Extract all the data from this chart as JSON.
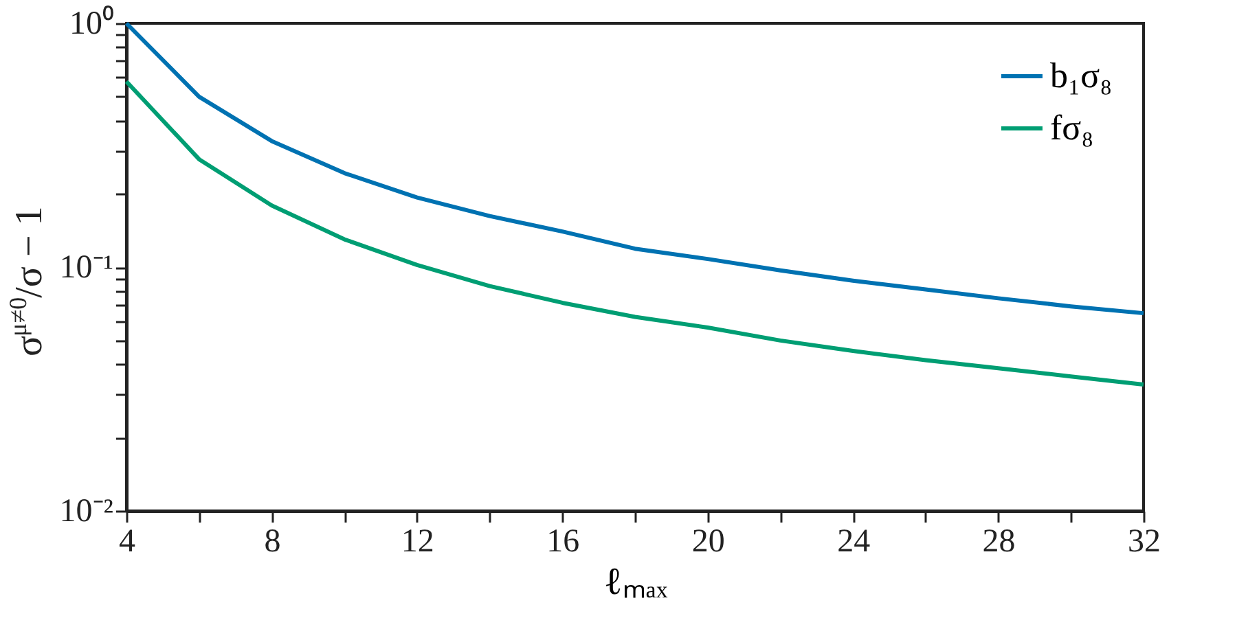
{
  "chart_data": {
    "type": "line",
    "xlabel": "ℓₘₐₓ",
    "ylabel": "σ$^{μ≠0}$/σ − 1",
    "x": [
      4,
      6,
      8,
      10,
      12,
      14,
      16,
      18,
      20,
      22,
      24,
      26,
      28,
      30,
      32
    ],
    "series": [
      {
        "name": "b₁σ₈",
        "color": "#0072b2",
        "values": [
          1.0,
          0.5,
          0.329,
          0.243,
          0.193,
          0.162,
          0.14,
          0.119,
          0.108,
          0.097,
          0.088,
          0.081,
          0.0745,
          0.069,
          0.0647
        ]
      },
      {
        "name": "fσ₈",
        "color": "#009e73",
        "values": [
          0.577,
          0.277,
          0.179,
          0.13,
          0.102,
          0.0836,
          0.0714,
          0.0625,
          0.0565,
          0.05,
          0.0453,
          0.0415,
          0.0385,
          0.0356,
          0.033
        ]
      }
    ],
    "log": "y",
    "xlim": [
      4,
      32
    ],
    "ylim": [
      0.01,
      1
    ],
    "xticks": [
      4,
      {
        "value": 6,
        "label": null
      },
      8,
      {
        "value": 10,
        "label": null
      },
      12,
      {
        "value": 14,
        "label": null
      },
      16,
      {
        "value": 18,
        "label": null
      },
      20,
      {
        "value": 22,
        "label": null
      },
      24,
      {
        "value": 26,
        "label": null
      },
      28,
      {
        "value": 30,
        "label": null
      },
      32
    ],
    "yticks": [
      {
        "value": 0.01,
        "label": "10⁻²"
      },
      {
        "value": 0.02,
        "label": null
      },
      {
        "value": 0.03,
        "label": null
      },
      {
        "value": 0.04,
        "label": null
      },
      {
        "value": 0.05,
        "label": null
      },
      {
        "value": 0.06,
        "label": null
      },
      {
        "value": 0.07,
        "label": null
      },
      {
        "value": 0.08,
        "label": null
      },
      {
        "value": 0.09,
        "label": null
      },
      {
        "value": 0.1,
        "label": "10⁻¹"
      },
      {
        "value": 0.2,
        "label": null
      },
      {
        "value": 0.3,
        "label": null
      },
      {
        "value": 0.4,
        "label": null
      },
      {
        "value": 0.5,
        "label": null
      },
      {
        "value": 0.6,
        "label": null
      },
      {
        "value": 0.7,
        "label": null
      },
      {
        "value": 0.8,
        "label": null
      },
      {
        "value": 0.9,
        "label": null
      },
      {
        "value": 1,
        "label": "10⁰"
      }
    ],
    "grid": false,
    "legend": "top right",
    "line_style": "solid",
    "marker": "none"
  }
}
